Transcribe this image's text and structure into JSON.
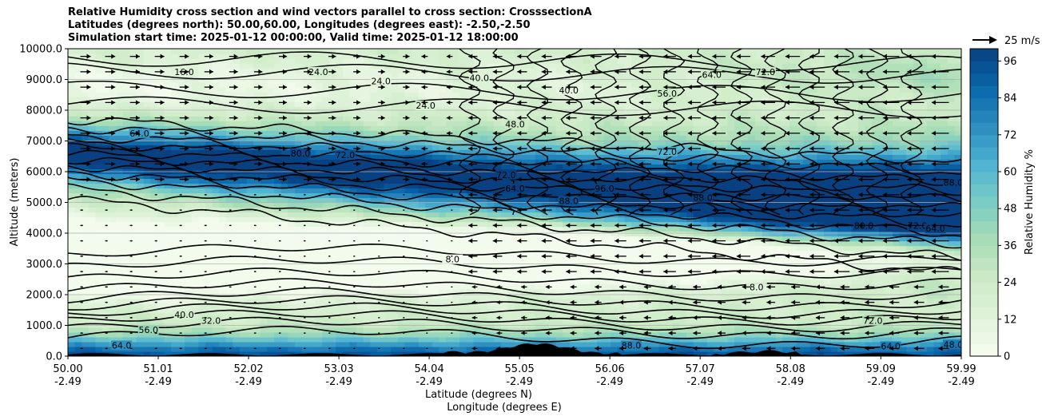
{
  "chart_data": {
    "type": "heatmap",
    "title_lines": [
      "Relative Humidity cross section and wind vectors parallel to cross section: CrosssectionA",
      "Latitudes (degrees north): 50.00,60.00, Longitudes (degrees east): -2.50,-2.50",
      "Simulation start time: 2025-01-12 00:00:00, Valid time: 2025-01-12 18:00:00"
    ],
    "ylabel": "Altitude (meters)",
    "xlabel_line1": "Latitude (degrees N)",
    "xlabel_line2": "Longitude (degrees E)",
    "colorbar_label": "Relative Humidity %",
    "quiver_key_label": "25 m/s",
    "xlim": [
      50.0,
      59.99
    ],
    "ylim": [
      0,
      10000
    ],
    "x_ticks": [
      {
        "lat": "50.00",
        "lon": "-2.49",
        "value": 50.0
      },
      {
        "lat": "51.01",
        "lon": "-2.49",
        "value": 51.01
      },
      {
        "lat": "52.02",
        "lon": "-2.49",
        "value": 52.02
      },
      {
        "lat": "53.03",
        "lon": "-2.49",
        "value": 53.03
      },
      {
        "lat": "54.04",
        "lon": "-2.49",
        "value": 54.04
      },
      {
        "lat": "55.05",
        "lon": "-2.49",
        "value": 55.05
      },
      {
        "lat": "56.06",
        "lon": "-2.49",
        "value": 56.06
      },
      {
        "lat": "57.07",
        "lon": "-2.49",
        "value": 57.07
      },
      {
        "lat": "58.08",
        "lon": "-2.49",
        "value": 58.08
      },
      {
        "lat": "59.09",
        "lon": "-2.49",
        "value": 59.09
      },
      {
        "lat": "59.99",
        "lon": "-2.49",
        "value": 59.99
      }
    ],
    "y_ticks": [
      {
        "label": "0.0",
        "value": 0
      },
      {
        "label": "1000.0",
        "value": 1000
      },
      {
        "label": "2000.0",
        "value": 2000
      },
      {
        "label": "3000.0",
        "value": 3000
      },
      {
        "label": "4000.0",
        "value": 4000
      },
      {
        "label": "5000.0",
        "value": 5000
      },
      {
        "label": "6000.0",
        "value": 6000
      },
      {
        "label": "7000.0",
        "value": 7000
      },
      {
        "label": "8000.0",
        "value": 8000
      },
      {
        "label": "9000.0",
        "value": 9000
      },
      {
        "label": "10000.0",
        "value": 10000
      }
    ],
    "colorbar_ticks": [
      {
        "label": "0",
        "value": 0
      },
      {
        "label": "12",
        "value": 12
      },
      {
        "label": "24",
        "value": 24
      },
      {
        "label": "36",
        "value": 36
      },
      {
        "label": "48",
        "value": 48
      },
      {
        "label": "60",
        "value": 60
      },
      {
        "label": "72",
        "value": 72
      },
      {
        "label": "84",
        "value": 84
      },
      {
        "label": "96",
        "value": 96
      }
    ],
    "colorbar_range": [
      0,
      100
    ],
    "colorbar_colors": [
      "#f7fcf0",
      "#e0f3db",
      "#ccebc5",
      "#a8ddb5",
      "#7bccc4",
      "#4eb3d3",
      "#2b8cbe",
      "#0868ac",
      "#084081"
    ],
    "grid": "horizontal",
    "contour_labels": [
      {
        "text": "80.0",
        "lat": 52.6,
        "alt": 6550
      },
      {
        "text": "72.0",
        "lat": 53.1,
        "alt": 6500
      },
      {
        "text": "72.0",
        "lat": 54.9,
        "alt": 5850
      },
      {
        "text": "64.0",
        "lat": 55.0,
        "alt": 5400
      },
      {
        "text": "24.0",
        "lat": 54.0,
        "alt": 8100
      },
      {
        "text": "40.0",
        "lat": 54.6,
        "alt": 9000
      },
      {
        "text": "48.0",
        "lat": 55.0,
        "alt": 7500
      },
      {
        "text": "24.0",
        "lat": 53.5,
        "alt": 8900
      },
      {
        "text": "24.0",
        "lat": 52.8,
        "alt": 9200
      },
      {
        "text": "16.0",
        "lat": 51.3,
        "alt": 9200
      },
      {
        "text": "8.0",
        "lat": 54.3,
        "alt": 3100
      },
      {
        "text": "8.0",
        "lat": 57.7,
        "alt": 2200
      },
      {
        "text": "56.0",
        "lat": 56.7,
        "alt": 8500
      },
      {
        "text": "72.0",
        "lat": 56.7,
        "alt": 6600
      },
      {
        "text": "96.0",
        "lat": 56.0,
        "alt": 5400
      },
      {
        "text": "88.0",
        "lat": 55.6,
        "alt": 5000
      },
      {
        "text": "88.0",
        "lat": 57.1,
        "alt": 5100
      },
      {
        "text": "80.0",
        "lat": 58.9,
        "alt": 4200
      },
      {
        "text": "72.0",
        "lat": 59.5,
        "alt": 4200
      },
      {
        "text": "64.0",
        "lat": 59.7,
        "alt": 4100
      },
      {
        "text": "88.0",
        "lat": 59.9,
        "alt": 5600
      },
      {
        "text": "64.0",
        "lat": 57.2,
        "alt": 9100
      },
      {
        "text": "72.0",
        "lat": 57.8,
        "alt": 9200
      },
      {
        "text": "40.0",
        "lat": 55.6,
        "alt": 8600
      },
      {
        "text": "64.0",
        "lat": 59.2,
        "alt": 270
      },
      {
        "text": "48.0",
        "lat": 59.9,
        "alt": 330
      },
      {
        "text": "72.0",
        "lat": 59.0,
        "alt": 1100
      },
      {
        "text": "56.0",
        "lat": 50.9,
        "alt": 800
      },
      {
        "text": "64.0",
        "lat": 50.6,
        "alt": 300
      },
      {
        "text": "40.0",
        "lat": 51.3,
        "alt": 1300
      },
      {
        "text": "32.0",
        "lat": 51.6,
        "alt": 1100
      },
      {
        "text": "88.0",
        "lat": 56.3,
        "alt": 300
      },
      {
        "text": "64.0",
        "lat": 50.8,
        "alt": 7200
      }
    ]
  }
}
